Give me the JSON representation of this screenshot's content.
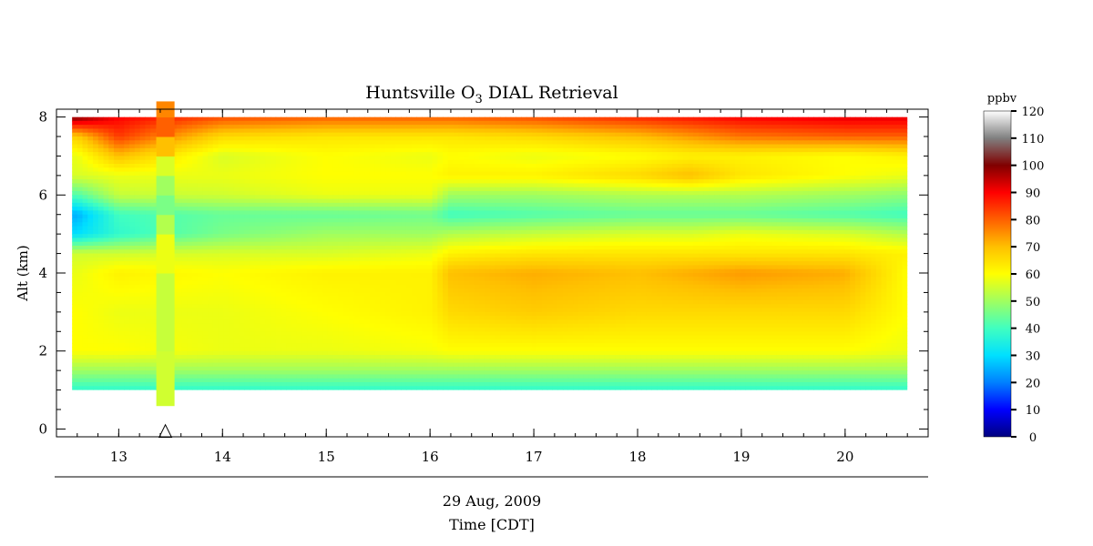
{
  "chart_data": {
    "type": "heatmap",
    "title_main": "Huntsville O",
    "title_sub": "3",
    "title_tail": " DIAL Retrieval",
    "ylabel": "Alt (km)",
    "xlabel": "Time [CDT]",
    "date_label": "29 Aug, 2009",
    "x_ticks": [
      "13",
      "14",
      "15",
      "16",
      "17",
      "18",
      "19",
      "20"
    ],
    "y_ticks": [
      "0",
      "2",
      "4",
      "6",
      "8"
    ],
    "xlim": [
      12.4,
      20.8
    ],
    "ylim": [
      -0.2,
      8.2
    ],
    "data_x_range": [
      12.55,
      20.6
    ],
    "data_alt_range": [
      1.0,
      8.0
    ],
    "marker_time": 13.45,
    "marker_symbol": "△",
    "colorbar": {
      "unit": "ppbv",
      "ticks": [
        "0",
        "10",
        "20",
        "30",
        "40",
        "50",
        "60",
        "70",
        "80",
        "90",
        "100",
        "110",
        "120"
      ],
      "range": [
        0,
        120
      ],
      "colors": [
        "#000080",
        "#0000ff",
        "#0080ff",
        "#00e0ff",
        "#40ffc0",
        "#a0ff60",
        "#ffff00",
        "#ffc000",
        "#ff6000",
        "#ff0000",
        "#800000",
        "#808080",
        "#ffffff"
      ]
    },
    "ozone_field_ppbv": {
      "times": [
        12.6,
        13.0,
        14.0,
        15.0,
        16.0,
        16.2,
        17.0,
        18.0,
        18.5,
        19.0,
        20.0,
        20.6
      ],
      "altitudes": [
        1.0,
        1.5,
        2.0,
        3.0,
        4.0,
        4.5,
        5.0,
        5.5,
        6.0,
        6.5,
        7.0,
        7.5,
        8.0
      ],
      "values": [
        [
          38,
          38,
          38,
          38,
          38,
          38,
          38,
          38,
          38,
          38,
          38,
          38
        ],
        [
          50,
          50,
          50,
          50,
          50,
          50,
          50,
          50,
          50,
          50,
          50,
          50
        ],
        [
          60,
          60,
          58,
          58,
          59,
          60,
          60,
          60,
          60,
          60,
          60,
          58
        ],
        [
          60,
          58,
          58,
          60,
          62,
          66,
          68,
          66,
          66,
          66,
          66,
          60
        ],
        [
          58,
          62,
          60,
          62,
          62,
          70,
          72,
          70,
          72,
          74,
          72,
          60
        ],
        [
          55,
          55,
          56,
          56,
          58,
          62,
          64,
          64,
          64,
          64,
          64,
          62
        ],
        [
          30,
          38,
          46,
          50,
          50,
          52,
          54,
          56,
          56,
          58,
          56,
          52
        ],
        [
          25,
          40,
          44,
          44,
          45,
          40,
          42,
          44,
          44,
          44,
          42,
          40
        ],
        [
          42,
          54,
          55,
          58,
          58,
          50,
          50,
          52,
          52,
          52,
          50,
          48
        ],
        [
          56,
          58,
          58,
          60,
          60,
          62,
          62,
          66,
          70,
          64,
          60,
          58
        ],
        [
          58,
          70,
          56,
          60,
          58,
          60,
          58,
          60,
          62,
          62,
          60,
          62
        ],
        [
          68,
          84,
          66,
          64,
          64,
          64,
          66,
          70,
          74,
          78,
          80,
          80
        ],
        [
          100,
          90,
          82,
          80,
          80,
          80,
          82,
          86,
          88,
          90,
          92,
          92
        ]
      ]
    },
    "marker_column_ppbv": {
      "time": 13.45,
      "altitudes": [
        0.6,
        1.0,
        2.0,
        3.0,
        4.0,
        5.0,
        5.5,
        6.0,
        6.5,
        7.0,
        7.5,
        8.0,
        8.4
      ],
      "values": [
        55,
        55,
        54,
        54,
        58,
        52,
        46,
        50,
        56,
        70,
        80,
        76,
        76
      ]
    }
  }
}
